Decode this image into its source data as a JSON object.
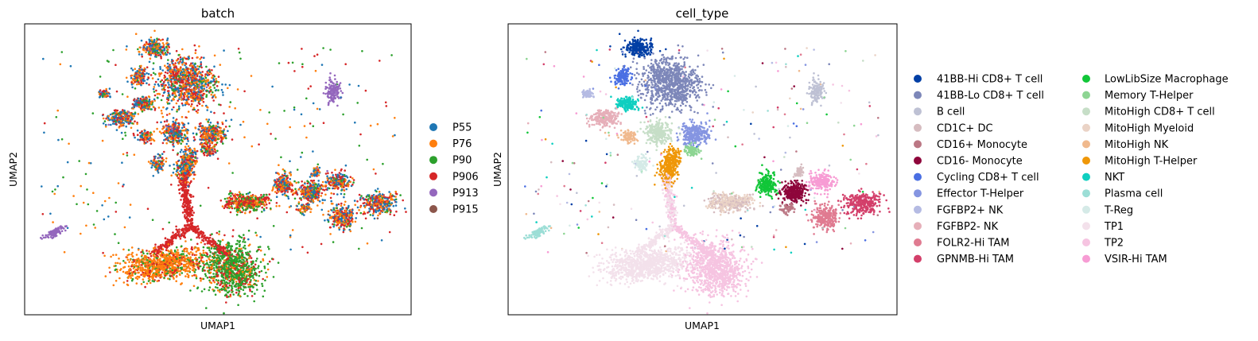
{
  "chart_data": [
    {
      "type": "scatter",
      "title": "batch",
      "xlabel": "UMAP1",
      "ylabel": "UMAP2",
      "grid": false,
      "legend_position": "right",
      "series": [
        {
          "name": "P55",
          "color": "#1f77b4"
        },
        {
          "name": "P76",
          "color": "#ff7f0e"
        },
        {
          "name": "P90",
          "color": "#2ca02c"
        },
        {
          "name": "P906",
          "color": "#d62728"
        },
        {
          "name": "P913",
          "color": "#9467bd"
        },
        {
          "name": "P915",
          "color": "#8c564b"
        }
      ]
    },
    {
      "type": "scatter",
      "title": "cell_type",
      "xlabel": "UMAP1",
      "ylabel": "UMAP2",
      "grid": false,
      "legend_position": "right",
      "series": [
        {
          "name": "41BB-Hi CD8+ T cell",
          "color": "#023fa5"
        },
        {
          "name": "41BB-Lo CD8+ T cell",
          "color": "#7d87b9"
        },
        {
          "name": "B cell",
          "color": "#bec1d4"
        },
        {
          "name": "CD1C+ DC",
          "color": "#d6bcc0"
        },
        {
          "name": "CD16+ Monocyte",
          "color": "#bb7784"
        },
        {
          "name": "CD16- Monocyte",
          "color": "#8e063b"
        },
        {
          "name": "Cycling CD8+ T cell",
          "color": "#4a6fe3"
        },
        {
          "name": "Effector T-Helper",
          "color": "#8595e1"
        },
        {
          "name": "FGFBP2+ NK",
          "color": "#b5bbe3"
        },
        {
          "name": "FGFBP2- NK",
          "color": "#e6afb9"
        },
        {
          "name": "FOLR2-Hi TAM",
          "color": "#e07b91"
        },
        {
          "name": "GPNMB-Hi TAM",
          "color": "#d33f6a"
        },
        {
          "name": "LowLibSize Macrophage",
          "color": "#11c638"
        },
        {
          "name": "Memory T-Helper",
          "color": "#8dd593"
        },
        {
          "name": "MitoHigh CD8+ T cell",
          "color": "#c6dec7"
        },
        {
          "name": "MitoHigh Myeloid",
          "color": "#ead3c6"
        },
        {
          "name": "MitoHigh NK",
          "color": "#f0b98d"
        },
        {
          "name": "MitoHigh T-Helper",
          "color": "#ef9708"
        },
        {
          "name": "NKT",
          "color": "#0fcfc0"
        },
        {
          "name": "Plasma cell",
          "color": "#9cded6"
        },
        {
          "name": "T-Reg",
          "color": "#d5eae7"
        },
        {
          "name": "TP1",
          "color": "#f3e1eb"
        },
        {
          "name": "TP2",
          "color": "#f6c4e1"
        },
        {
          "name": "VSIR-Hi TAM",
          "color": "#f79cd4"
        }
      ]
    }
  ]
}
